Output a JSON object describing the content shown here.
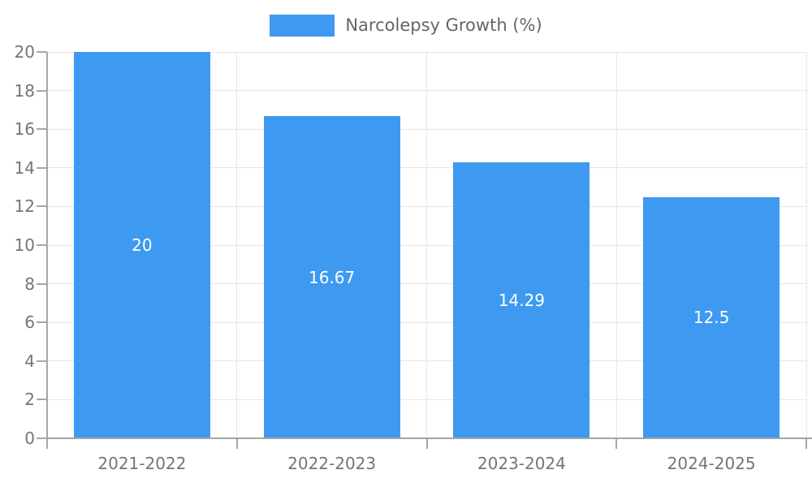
{
  "chart_data": {
    "type": "bar",
    "title": "",
    "legend": "Narcolepsy Growth (%)",
    "legend_position": "top-center",
    "categories": [
      "2021-2022",
      "2022-2023",
      "2023-2024",
      "2024-2025"
    ],
    "values": [
      20,
      16.67,
      14.29,
      12.5
    ],
    "value_labels": [
      "20",
      "16.67",
      "14.29",
      "12.5"
    ],
    "xlabel": "",
    "ylabel": "",
    "ylim": [
      0,
      20
    ],
    "ytick_step": 2,
    "ytick_labels": [
      "0",
      "2",
      "4",
      "6",
      "8",
      "10",
      "12",
      "14",
      "16",
      "18",
      "20"
    ],
    "grid": "on",
    "colors": {
      "bar": "#3d9af0",
      "bar_value_text": "#ffffff",
      "axis_text": "#757575",
      "legend_text": "#666666",
      "gridline": "#e6e6e6",
      "axis_line": "#a6a6a6",
      "background": "#ffffff"
    }
  }
}
